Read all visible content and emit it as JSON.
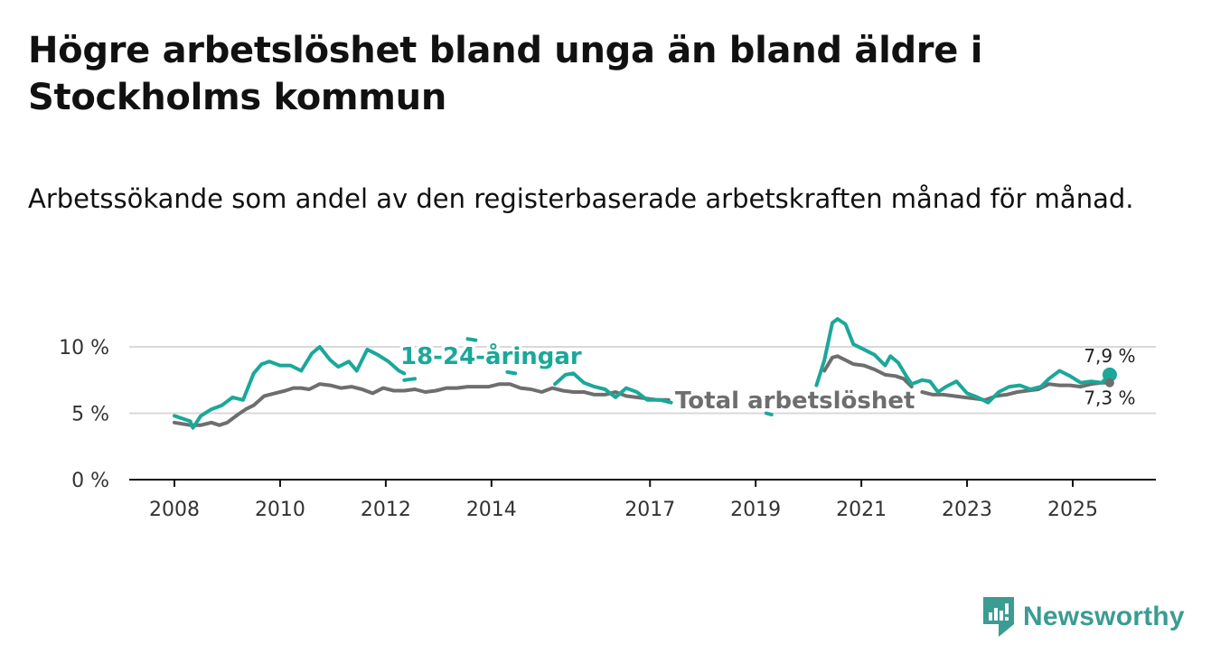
{
  "title": "Högre arbetslöshet bland unga än bland äldre i Stockholms kommun",
  "subtitle": "Arbetssökande som andel av den registerbaserade arbetskraften månad för månad.",
  "brand": {
    "name": "Newsworthy",
    "icon": "bar-chart-logo-icon"
  },
  "colors": {
    "youth": "#1aa899",
    "total": "#6e6e6e",
    "grid": "#d9d9d9",
    "axis": "#111111"
  },
  "chart_data": {
    "type": "line",
    "title": "Högre arbetslöshet bland unga än bland äldre i Stockholms kommun",
    "ylabel": "",
    "xlabel": "",
    "ylim": [
      0,
      10
    ],
    "xlim": [
      2007.5,
      2026.5
    ],
    "yticks": [
      0,
      5,
      10
    ],
    "ytick_labels": [
      "0 %",
      "5 %",
      "10 %"
    ],
    "xticks": [
      2008,
      2010,
      2012,
      2014,
      2017,
      2019,
      2021,
      2023,
      2025
    ],
    "xtick_labels": [
      "2008",
      "2010",
      "2012",
      "2014",
      "2017",
      "2019",
      "2021",
      "2023",
      "2025"
    ],
    "grid": "horizontal",
    "series": [
      {
        "name": "18-24-åringar",
        "label": "18-24-åringar",
        "end_label": "7,9 %",
        "color": "#1aa899",
        "x": [
          2008.0,
          2008.3,
          2008.35,
          2008.5,
          2008.7,
          2008.9,
          2009.1,
          2009.3,
          2009.5,
          2009.65,
          2009.8,
          2010.0,
          2010.2,
          2010.4,
          2010.6,
          2010.75,
          2010.95,
          2011.1,
          2011.3,
          2011.45,
          2011.65,
          2011.85,
          2012.05,
          2012.25,
          2012.35,
          null,
          2012.35,
          2012.55,
          null,
          2013.55,
          2013.7,
          null,
          2014.3,
          2014.45,
          null,
          2015.2,
          2015.4,
          2015.55,
          2015.75,
          2015.95,
          2016.15,
          2016.35,
          2016.55,
          2016.75,
          2016.95,
          2017.2,
          2017.4,
          null,
          2019.2,
          2019.3,
          null,
          2020.15,
          2020.3,
          2020.45,
          2020.55,
          2020.7,
          2020.85,
          2021.05,
          2021.25,
          2021.45,
          2021.55,
          2021.7,
          2021.85,
          2021.95,
          2022.15,
          2022.3,
          2022.45,
          2022.6,
          2022.8,
          2023.0,
          2023.2,
          2023.4,
          2023.6,
          2023.8,
          2024.0,
          2024.2,
          2024.4,
          2024.55,
          2024.75,
          2024.95,
          2025.15,
          2025.35,
          2025.55,
          2025.7
        ],
        "values": [
          4.8,
          4.4,
          3.9,
          4.8,
          5.3,
          5.6,
          6.2,
          6.0,
          8.0,
          8.7,
          8.9,
          8.6,
          8.6,
          8.2,
          9.5,
          10.0,
          9.0,
          8.5,
          8.9,
          8.2,
          9.8,
          9.4,
          8.9,
          8.2,
          8.0,
          null,
          7.5,
          7.6,
          null,
          10.6,
          10.5,
          null,
          8.1,
          8.0,
          null,
          7.2,
          7.9,
          8.0,
          7.3,
          7.0,
          6.8,
          6.2,
          6.9,
          6.6,
          6.0,
          6.0,
          5.8,
          null,
          5.0,
          4.9,
          null,
          7.1,
          9.0,
          11.8,
          12.1,
          11.7,
          10.2,
          9.8,
          9.4,
          8.6,
          9.3,
          8.8,
          7.8,
          7.2,
          7.5,
          7.4,
          6.6,
          7.0,
          7.4,
          6.5,
          6.2,
          5.8,
          6.6,
          7.0,
          7.1,
          6.8,
          7.0,
          7.6,
          8.2,
          7.8,
          7.3,
          7.4,
          7.3,
          7.9
        ]
      },
      {
        "name": "Total arbetslöshet",
        "label": "Total arbetslöshet",
        "end_label": "7,3 %",
        "color": "#6e6e6e",
        "x": [
          2008.0,
          2008.3,
          2008.5,
          2008.7,
          2008.85,
          2009.0,
          2009.2,
          2009.35,
          2009.5,
          2009.7,
          2009.9,
          2010.1,
          2010.25,
          2010.4,
          2010.55,
          2010.75,
          2010.95,
          2011.15,
          2011.35,
          2011.55,
          2011.75,
          2011.95,
          2012.15,
          2012.35,
          2012.55,
          2012.75,
          2012.95,
          2013.15,
          2013.35,
          2013.55,
          2013.75,
          2013.95,
          2014.15,
          2014.35,
          2014.55,
          2014.75,
          2014.95,
          2015.15,
          2015.35,
          2015.55,
          2015.75,
          2015.95,
          2016.15,
          2016.35,
          2016.55,
          2016.75,
          2016.95,
          2017.15,
          2017.35,
          null,
          2020.3,
          2020.45,
          2020.55,
          2020.7,
          2020.85,
          2021.05,
          2021.25,
          2021.45,
          2021.65,
          2021.8,
          2021.95,
          null,
          2022.15,
          2022.35,
          2022.55,
          2022.75,
          2022.95,
          2023.15,
          2023.35,
          2023.55,
          2023.75,
          2023.95,
          2024.15,
          2024.35,
          2024.55,
          2024.75,
          2024.95,
          2025.15,
          2025.35,
          2025.55,
          2025.7
        ],
        "values": [
          4.3,
          4.1,
          4.1,
          4.3,
          4.1,
          4.3,
          4.9,
          5.3,
          5.6,
          6.3,
          6.5,
          6.7,
          6.9,
          6.9,
          6.8,
          7.2,
          7.1,
          6.9,
          7.0,
          6.8,
          6.5,
          6.9,
          6.7,
          6.7,
          6.8,
          6.6,
          6.7,
          6.9,
          6.9,
          7.0,
          7.0,
          7.0,
          7.2,
          7.2,
          6.9,
          6.8,
          6.6,
          6.9,
          6.7,
          6.6,
          6.6,
          6.4,
          6.4,
          6.6,
          6.3,
          6.2,
          6.1,
          6.0,
          6.0,
          null,
          8.2,
          9.2,
          9.3,
          9.0,
          8.7,
          8.6,
          8.3,
          7.9,
          7.8,
          7.6,
          7.0,
          null,
          6.6,
          6.4,
          6.4,
          6.3,
          6.2,
          6.1,
          6.0,
          6.3,
          6.4,
          6.6,
          6.7,
          6.8,
          7.2,
          7.1,
          7.1,
          7.0,
          7.2,
          7.3,
          7.3
        ]
      }
    ]
  }
}
